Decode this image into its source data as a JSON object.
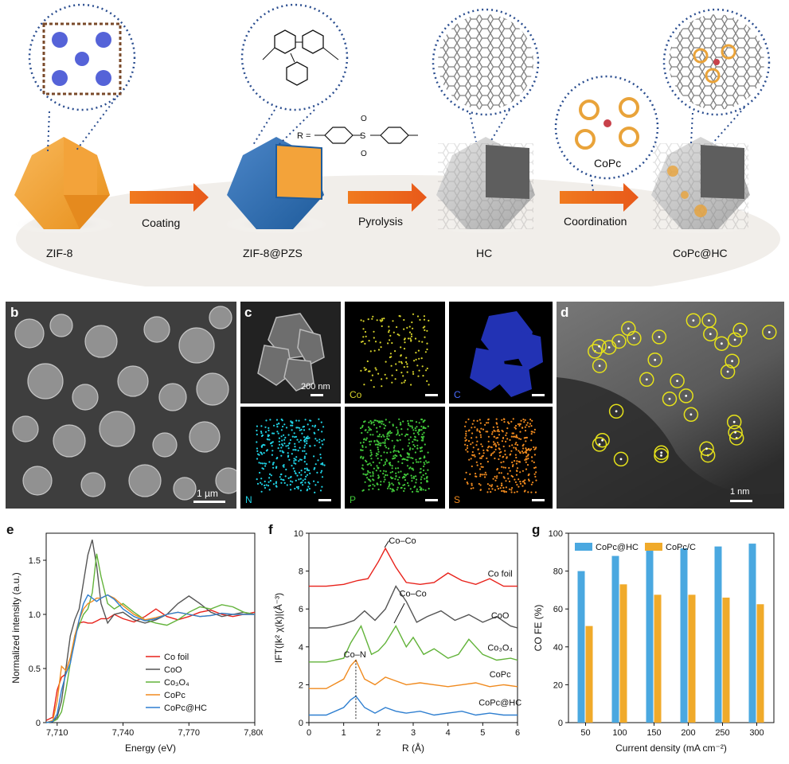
{
  "panel_a": {
    "letter": "a",
    "stages": [
      "ZIF-8",
      "ZIF-8@PZS",
      "HC",
      "CoPc@HC"
    ],
    "arrows": [
      "Coating",
      "Pyrolysis",
      "Coordination"
    ],
    "copc_label": "CoPc",
    "r_group": "R ="
  },
  "panel_b": {
    "letter": "b",
    "scale": "1 µm"
  },
  "panel_c": {
    "letter": "c",
    "tiles": [
      {
        "label": "200 nm",
        "color": "#ffffff",
        "bg": "#1b1b1b"
      },
      {
        "label": "Co",
        "color": "#d6d22a",
        "bg": "#000000"
      },
      {
        "label": "C",
        "color": "#4a6bff",
        "bg": "#000000"
      },
      {
        "label": "N",
        "color": "#1fd3e6",
        "bg": "#000000"
      },
      {
        "label": "P",
        "color": "#41c83a",
        "bg": "#000000"
      },
      {
        "label": "S",
        "color": "#f08a1e",
        "bg": "#000000"
      }
    ]
  },
  "panel_d": {
    "letter": "d",
    "scale": "1 nm"
  },
  "panel_e": {
    "letter": "e"
  },
  "panel_f": {
    "letter": "f"
  },
  "panel_g": {
    "letter": "g"
  },
  "chart_data": [
    {
      "type": "line",
      "xlabel": "Energy (eV)",
      "ylabel": "Normalized intensity (a.u.)",
      "xlim": [
        7705,
        7800
      ],
      "ylim": [
        0,
        1.75
      ],
      "xticks": [
        "7,710",
        "7,740",
        "7,770",
        "7,800"
      ],
      "yticks": [
        "0",
        "0.5",
        "1.0",
        "1.5"
      ],
      "legend_position": "bottom-right",
      "series": [
        {
          "name": "Co foil",
          "color": "#e8211a",
          "x": [
            7705,
            7708,
            7710,
            7712,
            7714,
            7716,
            7718,
            7720,
            7722,
            7724,
            7726,
            7728,
            7730,
            7733,
            7736,
            7740,
            7745,
            7750,
            7755,
            7760,
            7765,
            7770,
            7775,
            7780,
            7785,
            7790,
            7795,
            7800
          ],
          "y": [
            0.02,
            0.05,
            0.3,
            0.42,
            0.45,
            0.55,
            0.8,
            0.92,
            0.93,
            0.92,
            0.92,
            0.94,
            0.96,
            0.96,
            1.0,
            0.96,
            0.93,
            0.98,
            1.05,
            0.98,
            0.95,
            0.98,
            1.02,
            1.04,
            1.0,
            0.98,
            1.0,
            1.02
          ]
        },
        {
          "name": "CoO",
          "color": "#555555",
          "x": [
            7705,
            7708,
            7710,
            7712,
            7714,
            7716,
            7718,
            7720,
            7722,
            7724,
            7726,
            7728,
            7730,
            7733,
            7736,
            7740,
            7745,
            7750,
            7755,
            7760,
            7765,
            7770,
            7775,
            7780,
            7785,
            7790,
            7795,
            7800
          ],
          "y": [
            0.0,
            0.01,
            0.05,
            0.2,
            0.5,
            0.8,
            0.95,
            1.05,
            1.3,
            1.55,
            1.69,
            1.45,
            1.1,
            0.92,
            1.0,
            1.02,
            0.95,
            0.92,
            0.95,
            1.0,
            1.1,
            1.17,
            1.1,
            1.02,
            0.98,
            1.0,
            1.02,
            1.0
          ]
        },
        {
          "name": "Co₃O₄",
          "color": "#62b33a",
          "x": [
            7705,
            7708,
            7710,
            7712,
            7714,
            7716,
            7718,
            7720,
            7722,
            7724,
            7726,
            7728,
            7730,
            7733,
            7736,
            7740,
            7745,
            7750,
            7755,
            7760,
            7765,
            7770,
            7775,
            7780,
            7785,
            7790,
            7795,
            7800
          ],
          "y": [
            0.0,
            0.01,
            0.03,
            0.1,
            0.3,
            0.55,
            0.8,
            0.9,
            1.0,
            1.05,
            1.2,
            1.56,
            1.35,
            1.1,
            1.05,
            1.1,
            1.02,
            0.95,
            0.92,
            0.9,
            0.95,
            1.02,
            1.07,
            1.05,
            1.09,
            1.07,
            1.02,
            1.0
          ]
        },
        {
          "name": "CoPc",
          "color": "#f08a1e",
          "x": [
            7705,
            7708,
            7710,
            7712,
            7714,
            7716,
            7718,
            7720,
            7722,
            7724,
            7726,
            7728,
            7730,
            7733,
            7736,
            7740,
            7745,
            7750,
            7755,
            7760,
            7765,
            7770,
            7775,
            7780,
            7785,
            7790,
            7795,
            7800
          ],
          "y": [
            0.0,
            0.02,
            0.2,
            0.52,
            0.48,
            0.6,
            0.8,
            0.95,
            1.05,
            1.1,
            1.12,
            1.15,
            1.15,
            1.18,
            1.15,
            1.08,
            1.0,
            0.95,
            0.97,
            1.0,
            1.02,
            1.0,
            0.98,
            0.99,
            1.01,
            1.0,
            1.0,
            1.0
          ]
        },
        {
          "name": "CoPc@HC",
          "color": "#2f7fd0",
          "x": [
            7705,
            7708,
            7710,
            7712,
            7714,
            7716,
            7718,
            7720,
            7722,
            7724,
            7726,
            7728,
            7730,
            7733,
            7736,
            7740,
            7745,
            7750,
            7755,
            7760,
            7765,
            7770,
            7775,
            7780,
            7785,
            7790,
            7795,
            7800
          ],
          "y": [
            0.0,
            0.01,
            0.08,
            0.3,
            0.45,
            0.55,
            0.75,
            0.95,
            1.1,
            1.18,
            1.15,
            1.12,
            1.15,
            1.18,
            1.14,
            1.05,
            0.98,
            0.94,
            0.96,
            1.0,
            1.02,
            1.0,
            0.98,
            0.99,
            1.01,
            1.0,
            1.0,
            1.0
          ]
        }
      ]
    },
    {
      "type": "line",
      "xlabel": "R (Å)",
      "ylabel": "IFT(|k² χ(k)|(Å⁻³)",
      "xlim": [
        0,
        6
      ],
      "ylim": [
        0,
        10
      ],
      "xticks": [
        "0",
        "1",
        "2",
        "3",
        "4",
        "5",
        "6"
      ],
      "yticks": [
        "0",
        "2",
        "4",
        "6",
        "8",
        "10"
      ],
      "annotations": [
        "Co–Co",
        "Co–Co",
        "Co–N"
      ],
      "series": [
        {
          "name": "Co foil",
          "color": "#e8211a",
          "x": [
            0,
            0.5,
            1.0,
            1.4,
            1.7,
            2.0,
            2.2,
            2.5,
            2.8,
            3.2,
            3.6,
            4.0,
            4.4,
            4.8,
            5.2,
            5.6,
            6.0
          ],
          "y": [
            7.2,
            7.2,
            7.3,
            7.5,
            7.6,
            8.5,
            9.2,
            8.2,
            7.4,
            7.3,
            7.4,
            7.9,
            7.5,
            7.3,
            7.6,
            7.2,
            7.2
          ]
        },
        {
          "name": "CoO",
          "color": "#555555",
          "x": [
            0,
            0.5,
            1.0,
            1.3,
            1.6,
            1.9,
            2.2,
            2.5,
            2.8,
            3.1,
            3.4,
            3.8,
            4.2,
            4.6,
            5.0,
            5.4,
            5.8,
            6.0
          ],
          "y": [
            5.0,
            5.0,
            5.2,
            5.4,
            5.9,
            5.4,
            6.0,
            7.2,
            6.4,
            5.3,
            5.6,
            5.9,
            5.4,
            5.7,
            5.3,
            5.6,
            5.1,
            5.0
          ]
        },
        {
          "name": "Co₃O₄",
          "color": "#62b33a",
          "x": [
            0,
            0.5,
            1.0,
            1.2,
            1.5,
            1.8,
            2.0,
            2.2,
            2.5,
            2.8,
            3.0,
            3.3,
            3.6,
            4.0,
            4.3,
            4.6,
            5.0,
            5.4,
            5.8,
            6.0
          ],
          "y": [
            3.2,
            3.2,
            3.4,
            4.2,
            5.1,
            3.6,
            3.8,
            4.2,
            5.1,
            4.0,
            4.5,
            3.6,
            3.9,
            3.4,
            3.6,
            4.4,
            3.6,
            3.3,
            3.4,
            3.3
          ]
        },
        {
          "name": "CoPc",
          "color": "#f08a1e",
          "x": [
            0,
            0.5,
            1.0,
            1.2,
            1.35,
            1.6,
            1.9,
            2.2,
            2.5,
            2.8,
            3.2,
            3.6,
            4.0,
            4.4,
            4.8,
            5.2,
            5.6,
            6.0
          ],
          "y": [
            1.8,
            1.8,
            2.3,
            3.0,
            3.3,
            2.3,
            2.0,
            2.4,
            2.2,
            2.0,
            2.1,
            2.0,
            1.9,
            2.0,
            2.1,
            1.9,
            2.0,
            1.9
          ]
        },
        {
          "name": "CoPc@HC",
          "color": "#2f7fd0",
          "x": [
            0,
            0.5,
            1.0,
            1.2,
            1.35,
            1.6,
            1.9,
            2.2,
            2.5,
            2.8,
            3.2,
            3.6,
            4.0,
            4.4,
            4.8,
            5.2,
            5.6,
            6.0
          ],
          "y": [
            0.4,
            0.4,
            0.8,
            1.2,
            1.4,
            0.8,
            0.5,
            0.8,
            0.6,
            0.5,
            0.6,
            0.4,
            0.5,
            0.6,
            0.4,
            0.5,
            0.4,
            0.4
          ]
        }
      ]
    },
    {
      "type": "bar",
      "xlabel": "Current density (mA cm⁻²)",
      "ylabel": "CO FE (%)",
      "categories": [
        "50",
        "100",
        "150",
        "200",
        "250",
        "300"
      ],
      "ylim": [
        0,
        100
      ],
      "yticks": [
        "0",
        "20",
        "40",
        "60",
        "80",
        "100"
      ],
      "legend_position": "top-left",
      "series": [
        {
          "name": "CoPc@HC",
          "color": "#4aa8e0",
          "values": [
            80,
            88,
            91,
            92,
            93,
            94.5
          ]
        },
        {
          "name": "CoPc/C",
          "color": "#f0aa2a",
          "values": [
            51,
            73,
            67.5,
            67.5,
            66,
            62.5
          ]
        }
      ]
    }
  ]
}
